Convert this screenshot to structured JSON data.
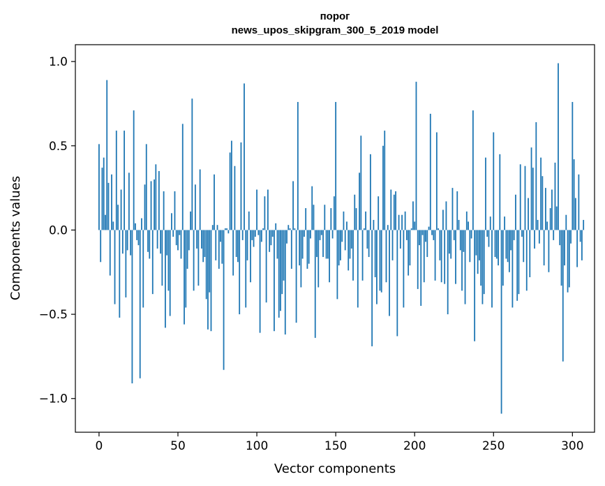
{
  "chart_data": {
    "type": "bar",
    "title_line1": "порог",
    "title_line2": "news_upos_skipgram_300_5_2019 model",
    "xlabel": "Vector components",
    "ylabel": "Components values",
    "xlim": [
      -15,
      314
    ],
    "ylim": [
      -1.2,
      1.1
    ],
    "xticks": [
      0,
      50,
      100,
      150,
      200,
      250,
      300
    ],
    "xtick_labels": [
      "0",
      "50",
      "100",
      "150",
      "200",
      "250",
      "300"
    ],
    "yticks": [
      -1.0,
      -0.5,
      0.0,
      0.5,
      1.0
    ],
    "ytick_labels": [
      "−1.0",
      "−0.5",
      "0.0",
      "0.5",
      "1.0"
    ],
    "bar_color": "#1f77b4",
    "values": [
      0.51,
      -0.19,
      0.37,
      0.43,
      0.09,
      0.89,
      0.28,
      -0.27,
      0.33,
      0.05,
      -0.44,
      0.59,
      0.15,
      -0.52,
      0.24,
      -0.14,
      0.59,
      -0.4,
      -0.12,
      0.34,
      -0.15,
      -0.91,
      0.71,
      0.04,
      -0.06,
      -0.09,
      -0.88,
      0.07,
      -0.46,
      0.27,
      0.51,
      -0.13,
      -0.17,
      0.29,
      -0.38,
      0.3,
      0.39,
      -0.11,
      0.35,
      -0.14,
      -0.33,
      0.23,
      -0.58,
      -0.15,
      -0.36,
      -0.51,
      0.1,
      -0.04,
      0.23,
      -0.09,
      -0.12,
      -0.03,
      -0.17,
      0.63,
      -0.56,
      -0.46,
      -0.23,
      -0.12,
      0.11,
      0.78,
      -0.36,
      0.27,
      -0.11,
      -0.33,
      0.36,
      -0.11,
      -0.19,
      -0.16,
      -0.41,
      -0.59,
      -0.37,
      -0.6,
      0.03,
      0.33,
      -0.18,
      0.03,
      -0.23,
      -0.07,
      -0.2,
      -0.83,
      0.01,
      0.01,
      -0.02,
      0.46,
      0.53,
      -0.27,
      0.38,
      -0.16,
      -0.19,
      -0.5,
      0.52,
      -0.06,
      0.87,
      -0.46,
      -0.18,
      0.11,
      -0.31,
      -0.06,
      -0.1,
      -0.04,
      0.24,
      -0.03,
      -0.61,
      -0.07,
      0.01,
      0.2,
      -0.43,
      0.24,
      -0.13,
      -0.09,
      -0.04,
      -0.6,
      0.04,
      -0.17,
      -0.52,
      -0.48,
      -0.38,
      -0.3,
      -0.62,
      -0.08,
      0.03,
      0.01,
      -0.23,
      0.29,
      0.01,
      -0.55,
      0.76,
      -0.21,
      -0.34,
      -0.17,
      -0.04,
      0.13,
      -0.23,
      -0.2,
      -0.05,
      0.26,
      0.15,
      -0.64,
      -0.16,
      -0.34,
      -0.06,
      -0.03,
      -0.16,
      0.15,
      -0.17,
      -0.17,
      -0.31,
      0.13,
      -0.05,
      0.2,
      0.76,
      -0.41,
      -0.21,
      -0.18,
      -0.07,
      0.11,
      -0.12,
      0.05,
      -0.24,
      -0.17,
      -0.11,
      -0.3,
      0.21,
      0.13,
      -0.46,
      0.34,
      0.56,
      -0.3,
      0.01,
      0.11,
      -0.11,
      -0.16,
      0.45,
      -0.69,
      0.06,
      -0.28,
      -0.44,
      0.2,
      -0.36,
      -0.37,
      0.5,
      0.59,
      -0.31,
      0.03,
      -0.51,
      0.24,
      -0.18,
      0.21,
      0.23,
      -0.63,
      0.09,
      -0.11,
      0.09,
      -0.46,
      0.11,
      -0.06,
      -0.27,
      -0.21,
      0.01,
      0.17,
      0.05,
      0.88,
      -0.35,
      -0.09,
      -0.45,
      -0.03,
      -0.31,
      -0.07,
      -0.16,
      0.02,
      0.69,
      -0.03,
      -0.06,
      -0.3,
      0.58,
      0.01,
      -0.18,
      -0.31,
      0.12,
      -0.32,
      0.17,
      -0.5,
      -0.14,
      -0.17,
      0.25,
      -0.06,
      -0.32,
      0.23,
      0.06,
      -0.12,
      -0.36,
      -0.13,
      -0.44,
      0.11,
      0.05,
      -0.19,
      -0.05,
      0.71,
      -0.66,
      -0.15,
      -0.26,
      -0.18,
      -0.33,
      -0.44,
      -0.38,
      0.43,
      -0.04,
      -0.1,
      0.08,
      -0.46,
      0.58,
      -0.16,
      -0.17,
      -0.21,
      0.45,
      -1.09,
      -0.33,
      0.08,
      -0.17,
      -0.19,
      -0.25,
      -0.12,
      -0.46,
      -0.06,
      0.21,
      -0.42,
      -0.38,
      0.39,
      -0.04,
      -0.19,
      0.38,
      -0.36,
      0.19,
      -0.28,
      0.49,
      0.37,
      -0.11,
      0.64,
      0.06,
      -0.08,
      0.43,
      0.32,
      -0.21,
      0.25,
      0.05,
      -0.25,
      0.13,
      0.24,
      -0.06,
      0.4,
      0.14,
      0.99,
      -0.09,
      -0.33,
      -0.78,
      -0.21,
      0.09,
      -0.37,
      -0.34,
      -0.08,
      0.76,
      0.42,
      0.19,
      -0.22,
      0.33,
      -0.07,
      -0.18,
      0.06
    ]
  }
}
